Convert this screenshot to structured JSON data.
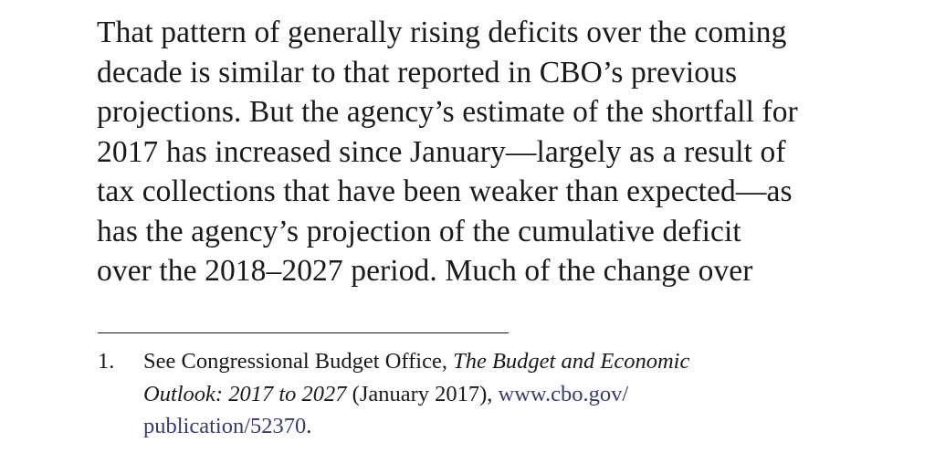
{
  "paragraph": {
    "lines": [
      "That pattern of generally rising deficits over the coming",
      "decade is similar to that reported in CBO’s previous",
      "projections. But the agency’s estimate of the shortfall for",
      "2017 has increased since January—largely as a result of",
      "tax collections that have been weaker than expected—as",
      "has the agency’s projection of the cumulative deficit",
      "over the 2018–2027 period. Much of the change over"
    ]
  },
  "footnote": {
    "number": "1.",
    "line1_prefix": "See Congressional Budget Office, ",
    "line1_title": "The Budget and Economic",
    "line2_title": "Outlook: 2017 to 2027",
    "line2_mid": " (January 2017), ",
    "line2_link": "www.cbo.gov/",
    "line3_link": "publication/52370",
    "line3_suffix": "."
  }
}
